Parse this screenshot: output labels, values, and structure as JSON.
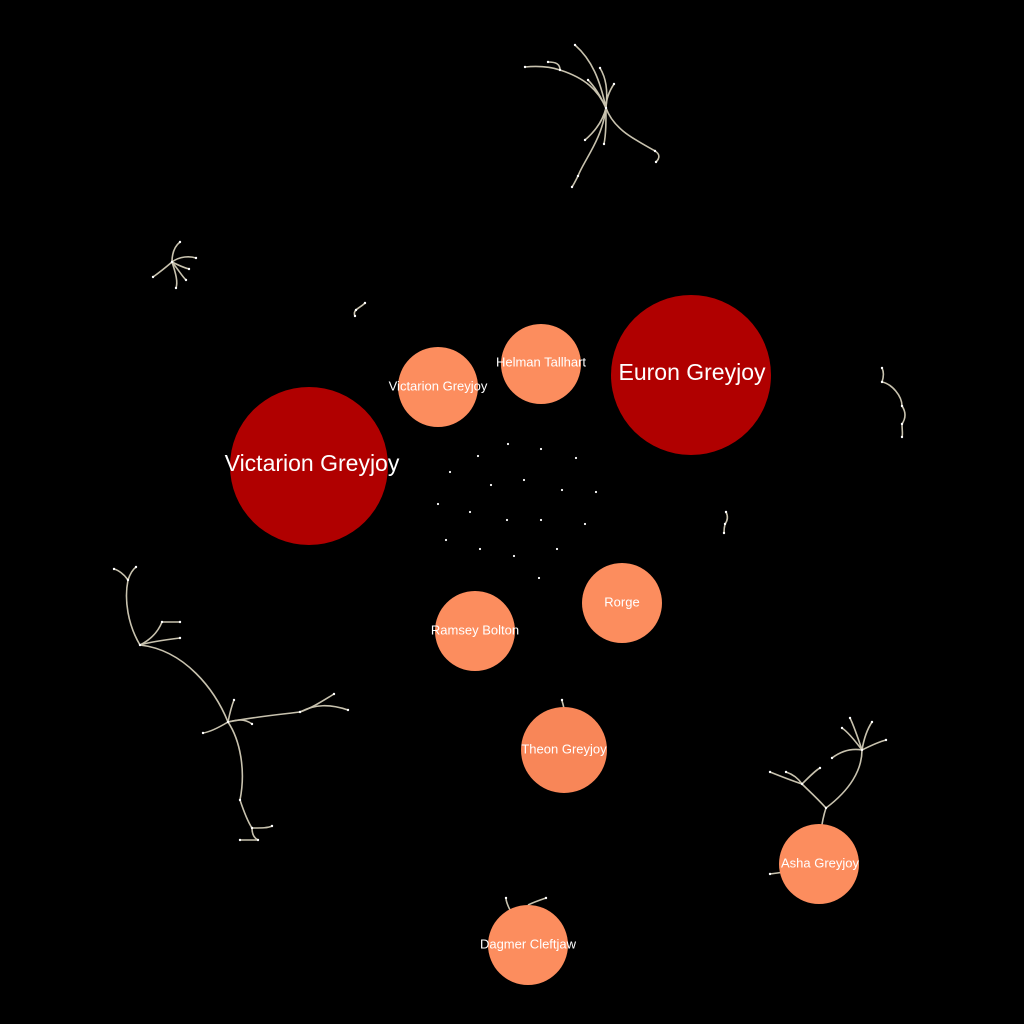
{
  "colors": {
    "background": "#000000",
    "major_node": "#b00000",
    "minor_node": "#fc8d5e",
    "edge": "#c8c2ae",
    "label": "#ffffff"
  },
  "nodes": [
    {
      "id": "victarion-greyjoy-major",
      "label": "Victarion Greyjoy",
      "tier": "major"
    },
    {
      "id": "euron-greyjoy",
      "label": "Euron Greyjoy",
      "tier": "major"
    },
    {
      "id": "victarion-greyjoy-minor",
      "label": "Victarion Greyjoy",
      "tier": "minor"
    },
    {
      "id": "helman-tallhart",
      "label": "Helman Tallhart",
      "tier": "minor"
    },
    {
      "id": "rorge",
      "label": "Rorge",
      "tier": "minor"
    },
    {
      "id": "ramsey-bolton",
      "label": "Ramsey Bolton",
      "tier": "minor"
    },
    {
      "id": "theon-greyjoy",
      "label": "Theon Greyjoy",
      "tier": "minor"
    },
    {
      "id": "asha-greyjoy",
      "label": "Asha Greyjoy",
      "tier": "minor"
    },
    {
      "id": "dagmer-cleftjaw",
      "label": "Dagmer Cleftjaw",
      "tier": "minor"
    }
  ]
}
